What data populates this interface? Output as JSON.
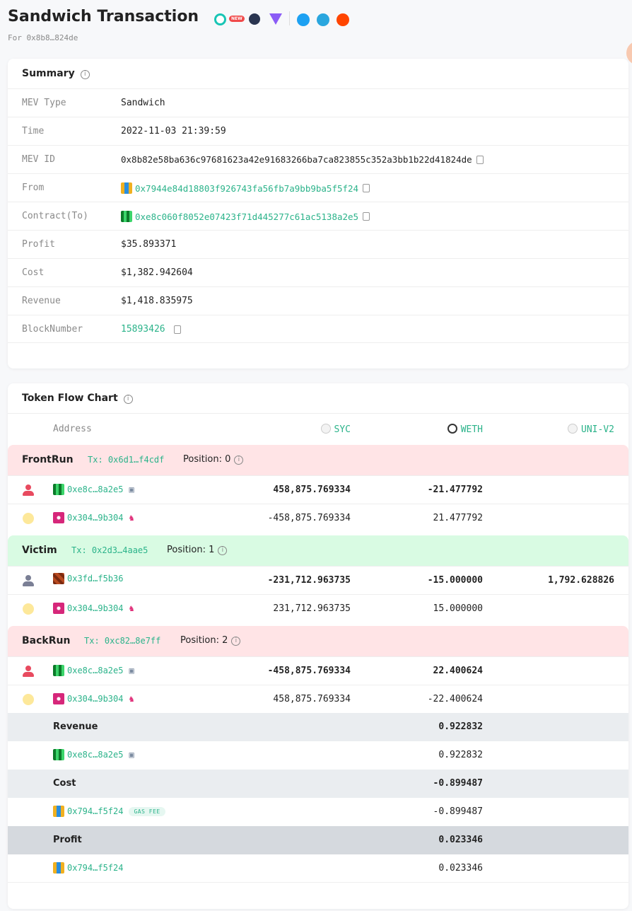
{
  "page": {
    "title": "Sandwich Transaction",
    "subtitle": "For 0x8b8…824de",
    "new_badge": "NEW",
    "header_icons": [
      "explorer-icon",
      "chart-icon",
      "prism-icon",
      "twitter-icon",
      "telegram-icon",
      "reddit-icon"
    ]
  },
  "summary": {
    "title": "Summary",
    "rows": [
      {
        "label": "MEV Type",
        "value": "Sandwich"
      },
      {
        "label": "Time",
        "value": "2022-11-03 21:39:59"
      },
      {
        "label": "MEV ID",
        "value": "0x8b82e58ba636c97681623a42e91683266ba7ca823855c352a3bb1b22d41824de"
      },
      {
        "label": "From",
        "value": "0x7944e84d18803f926743fa56fb7a9bb9ba5f5f24"
      },
      {
        "label": "Contract(To)",
        "value": "0xe8c060f8052e07423f71d445277c61ac5138a2e5"
      },
      {
        "label": "Profit",
        "value": "$35.893371"
      },
      {
        "label": "Cost",
        "value": "$1,382.942604"
      },
      {
        "label": "Revenue",
        "value": "$1,418.835975"
      },
      {
        "label": "BlockNumber",
        "value": "15893426"
      }
    ]
  },
  "flow": {
    "title": "Token Flow Chart",
    "columns": {
      "address": "Address",
      "t1": "SYC",
      "t2": "WETH",
      "t3": "UNI-V2"
    },
    "sections": [
      {
        "name": "FrontRun",
        "tx": "Tx: 0x6d1…f4cdf",
        "position": "Position: 0",
        "rows": [
          {
            "addr": "0xe8c…8a2e5",
            "v1": "458,875.769334",
            "v2": "-21.477792",
            "v3": ""
          },
          {
            "addr": "0x304…9b304",
            "v1": "-458,875.769334",
            "v2": "21.477792",
            "v3": ""
          }
        ]
      },
      {
        "name": "Victim",
        "tx": "Tx: 0x2d3…4aae5",
        "position": "Position: 1",
        "rows": [
          {
            "addr": "0x3fd…f5b36",
            "v1": "-231,712.963735",
            "v2": "-15.000000",
            "v3": "1,792.628826"
          },
          {
            "addr": "0x304…9b304",
            "v1": "231,712.963735",
            "v2": "15.000000",
            "v3": ""
          }
        ]
      },
      {
        "name": "BackRun",
        "tx": "Tx: 0xc82…8e7ff",
        "position": "Position: 2",
        "rows": [
          {
            "addr": "0xe8c…8a2e5",
            "v1": "-458,875.769334",
            "v2": "22.400624",
            "v3": ""
          },
          {
            "addr": "0x304…9b304",
            "v1": "458,875.769334",
            "v2": "-22.400624",
            "v3": ""
          }
        ]
      }
    ],
    "totals": {
      "revenue": {
        "label": "Revenue",
        "value": "0.922832",
        "addr": "0xe8c…8a2e5",
        "addr_value": "0.922832"
      },
      "cost": {
        "label": "Cost",
        "value": "-0.899487",
        "addr": "0x794…f5f24",
        "addr_value": "-0.899487",
        "tag": "GAS FEE"
      },
      "profit": {
        "label": "Profit",
        "value": "0.023346",
        "addr": "0x794…f5f24",
        "addr_value": "0.023346"
      }
    }
  }
}
